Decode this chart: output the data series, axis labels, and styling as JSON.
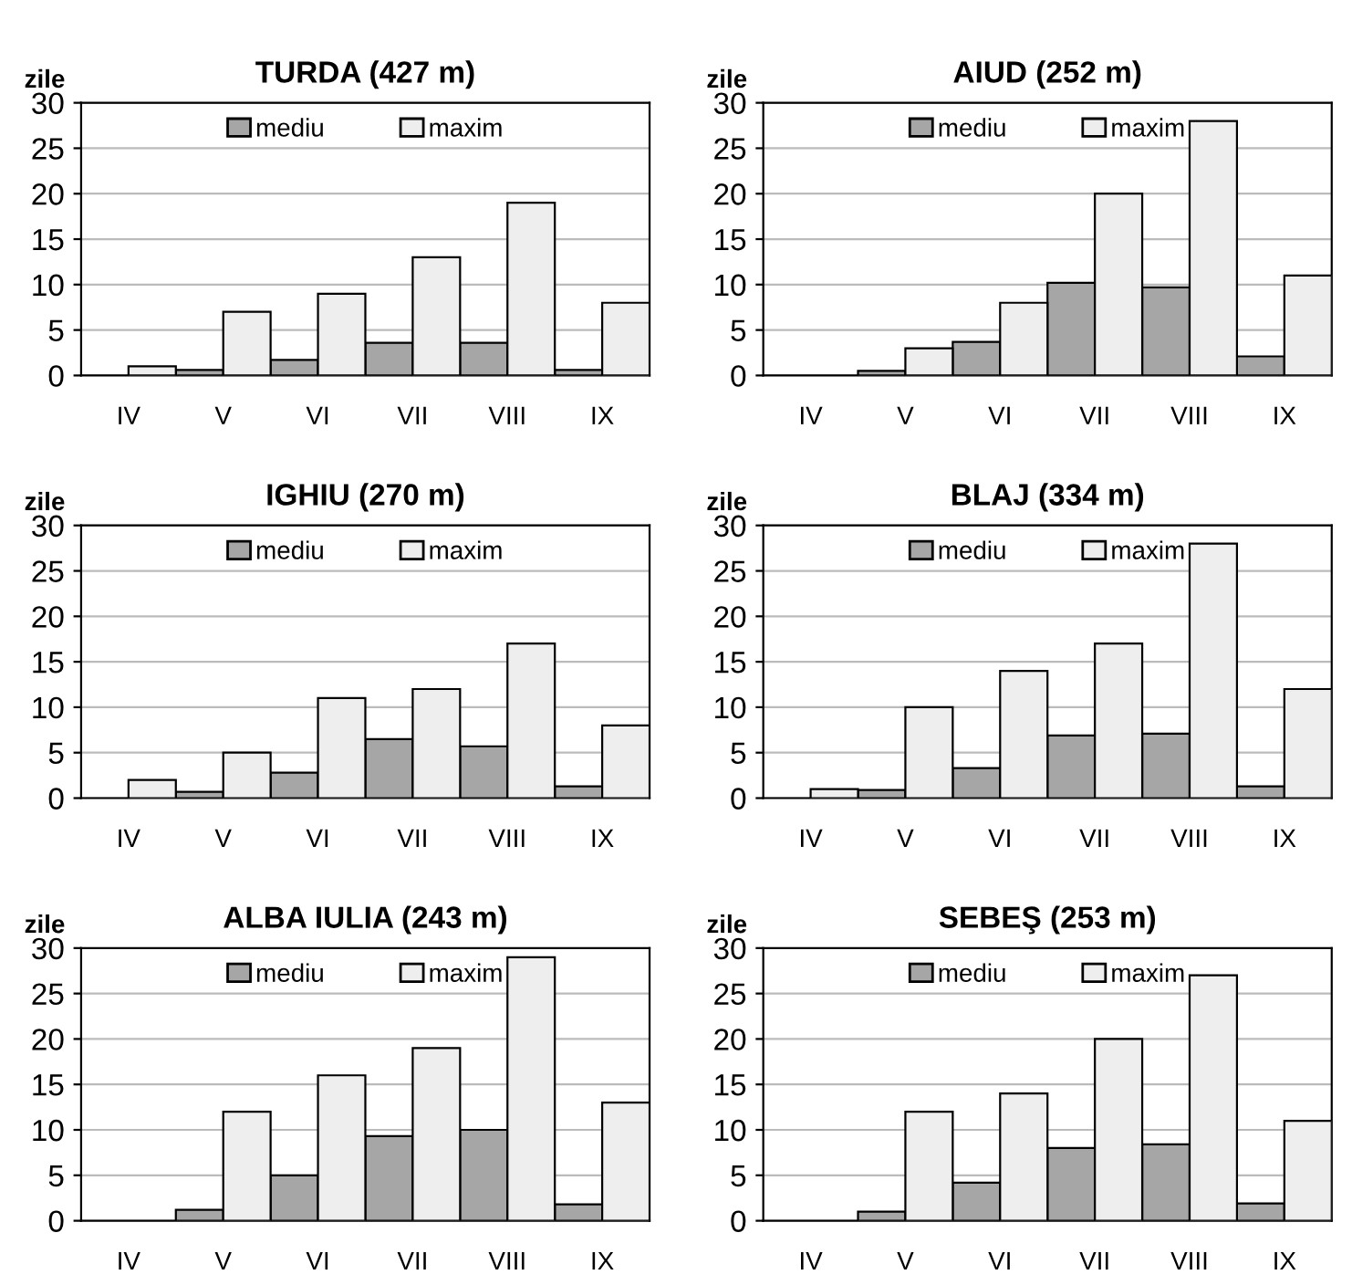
{
  "chart_data": [
    {
      "type": "bar",
      "title": "TURDA (427 m)",
      "ylabel": "zile",
      "categories": [
        "IV",
        "V",
        "VI",
        "VII",
        "VIII",
        "IX"
      ],
      "ylim": [
        0,
        30
      ],
      "yticks": [
        0,
        5,
        10,
        15,
        20,
        25,
        30
      ],
      "grid": "y",
      "legend": "top",
      "series": [
        {
          "name": "mediu",
          "color": "#a6a6a6",
          "values": [
            0,
            0.6,
            1.7,
            3.6,
            3.6,
            0.6
          ]
        },
        {
          "name": "maxim",
          "color": "#eeeeee",
          "values": [
            1,
            7,
            9,
            13,
            19,
            8
          ]
        }
      ]
    },
    {
      "type": "bar",
      "title": "AIUD (252 m)",
      "ylabel": "zile",
      "categories": [
        "IV",
        "V",
        "VI",
        "VII",
        "VIII",
        "IX"
      ],
      "ylim": [
        0,
        30
      ],
      "yticks": [
        0,
        5,
        10,
        15,
        20,
        25,
        30
      ],
      "grid": "y",
      "legend": "top",
      "series": [
        {
          "name": "mediu",
          "color": "#a6a6a6",
          "values": [
            0,
            0.5,
            3.7,
            10.2,
            9.7,
            2.1
          ]
        },
        {
          "name": "maxim",
          "color": "#eeeeee",
          "values": [
            0,
            3,
            8,
            20,
            28,
            11
          ]
        }
      ]
    },
    {
      "type": "bar",
      "title": "IGHIU (270 m)",
      "ylabel": "zile",
      "categories": [
        "IV",
        "V",
        "VI",
        "VII",
        "VIII",
        "IX"
      ],
      "ylim": [
        0,
        30
      ],
      "yticks": [
        0,
        5,
        10,
        15,
        20,
        25,
        30
      ],
      "grid": "y",
      "legend": "top",
      "series": [
        {
          "name": "mediu",
          "color": "#a6a6a6",
          "values": [
            0,
            0.7,
            2.8,
            6.5,
            5.7,
            1.3
          ]
        },
        {
          "name": "maxim",
          "color": "#eeeeee",
          "values": [
            2,
            5,
            11,
            12,
            17,
            8
          ]
        }
      ]
    },
    {
      "type": "bar",
      "title": "BLAJ (334 m)",
      "ylabel": "zile",
      "categories": [
        "IV",
        "V",
        "VI",
        "VII",
        "VIII",
        "IX"
      ],
      "ylim": [
        0,
        30
      ],
      "yticks": [
        0,
        5,
        10,
        15,
        20,
        25,
        30
      ],
      "grid": "y",
      "legend": "top",
      "series": [
        {
          "name": "mediu",
          "color": "#a6a6a6",
          "values": [
            0,
            0.9,
            3.3,
            6.9,
            7.1,
            1.3
          ]
        },
        {
          "name": "maxim",
          "color": "#eeeeee",
          "values": [
            1,
            10,
            14,
            17,
            28,
            12
          ]
        }
      ]
    },
    {
      "type": "bar",
      "title": "ALBA IULIA (243 m)",
      "ylabel": "zile",
      "categories": [
        "IV",
        "V",
        "VI",
        "VII",
        "VIII",
        "IX"
      ],
      "ylim": [
        0,
        30
      ],
      "yticks": [
        0,
        5,
        10,
        15,
        20,
        25,
        30
      ],
      "grid": "y",
      "legend": "top",
      "series": [
        {
          "name": "mediu",
          "color": "#a6a6a6",
          "values": [
            0,
            1.2,
            5,
            9.3,
            10,
            1.8
          ]
        },
        {
          "name": "maxim",
          "color": "#eeeeee",
          "values": [
            0,
            12,
            16,
            19,
            29,
            13
          ]
        }
      ]
    },
    {
      "type": "bar",
      "title": "SEBEŞ (253 m)",
      "ylabel": "zile",
      "categories": [
        "IV",
        "V",
        "VI",
        "VII",
        "VIII",
        "IX"
      ],
      "ylim": [
        0,
        30
      ],
      "yticks": [
        0,
        5,
        10,
        15,
        20,
        25,
        30
      ],
      "grid": "y",
      "legend": "top",
      "series": [
        {
          "name": "mediu",
          "color": "#a6a6a6",
          "values": [
            0,
            1,
            4.2,
            8,
            8.4,
            1.9
          ]
        },
        {
          "name": "maxim",
          "color": "#eeeeee",
          "values": [
            0,
            12,
            14,
            20,
            27,
            11
          ]
        }
      ]
    }
  ]
}
